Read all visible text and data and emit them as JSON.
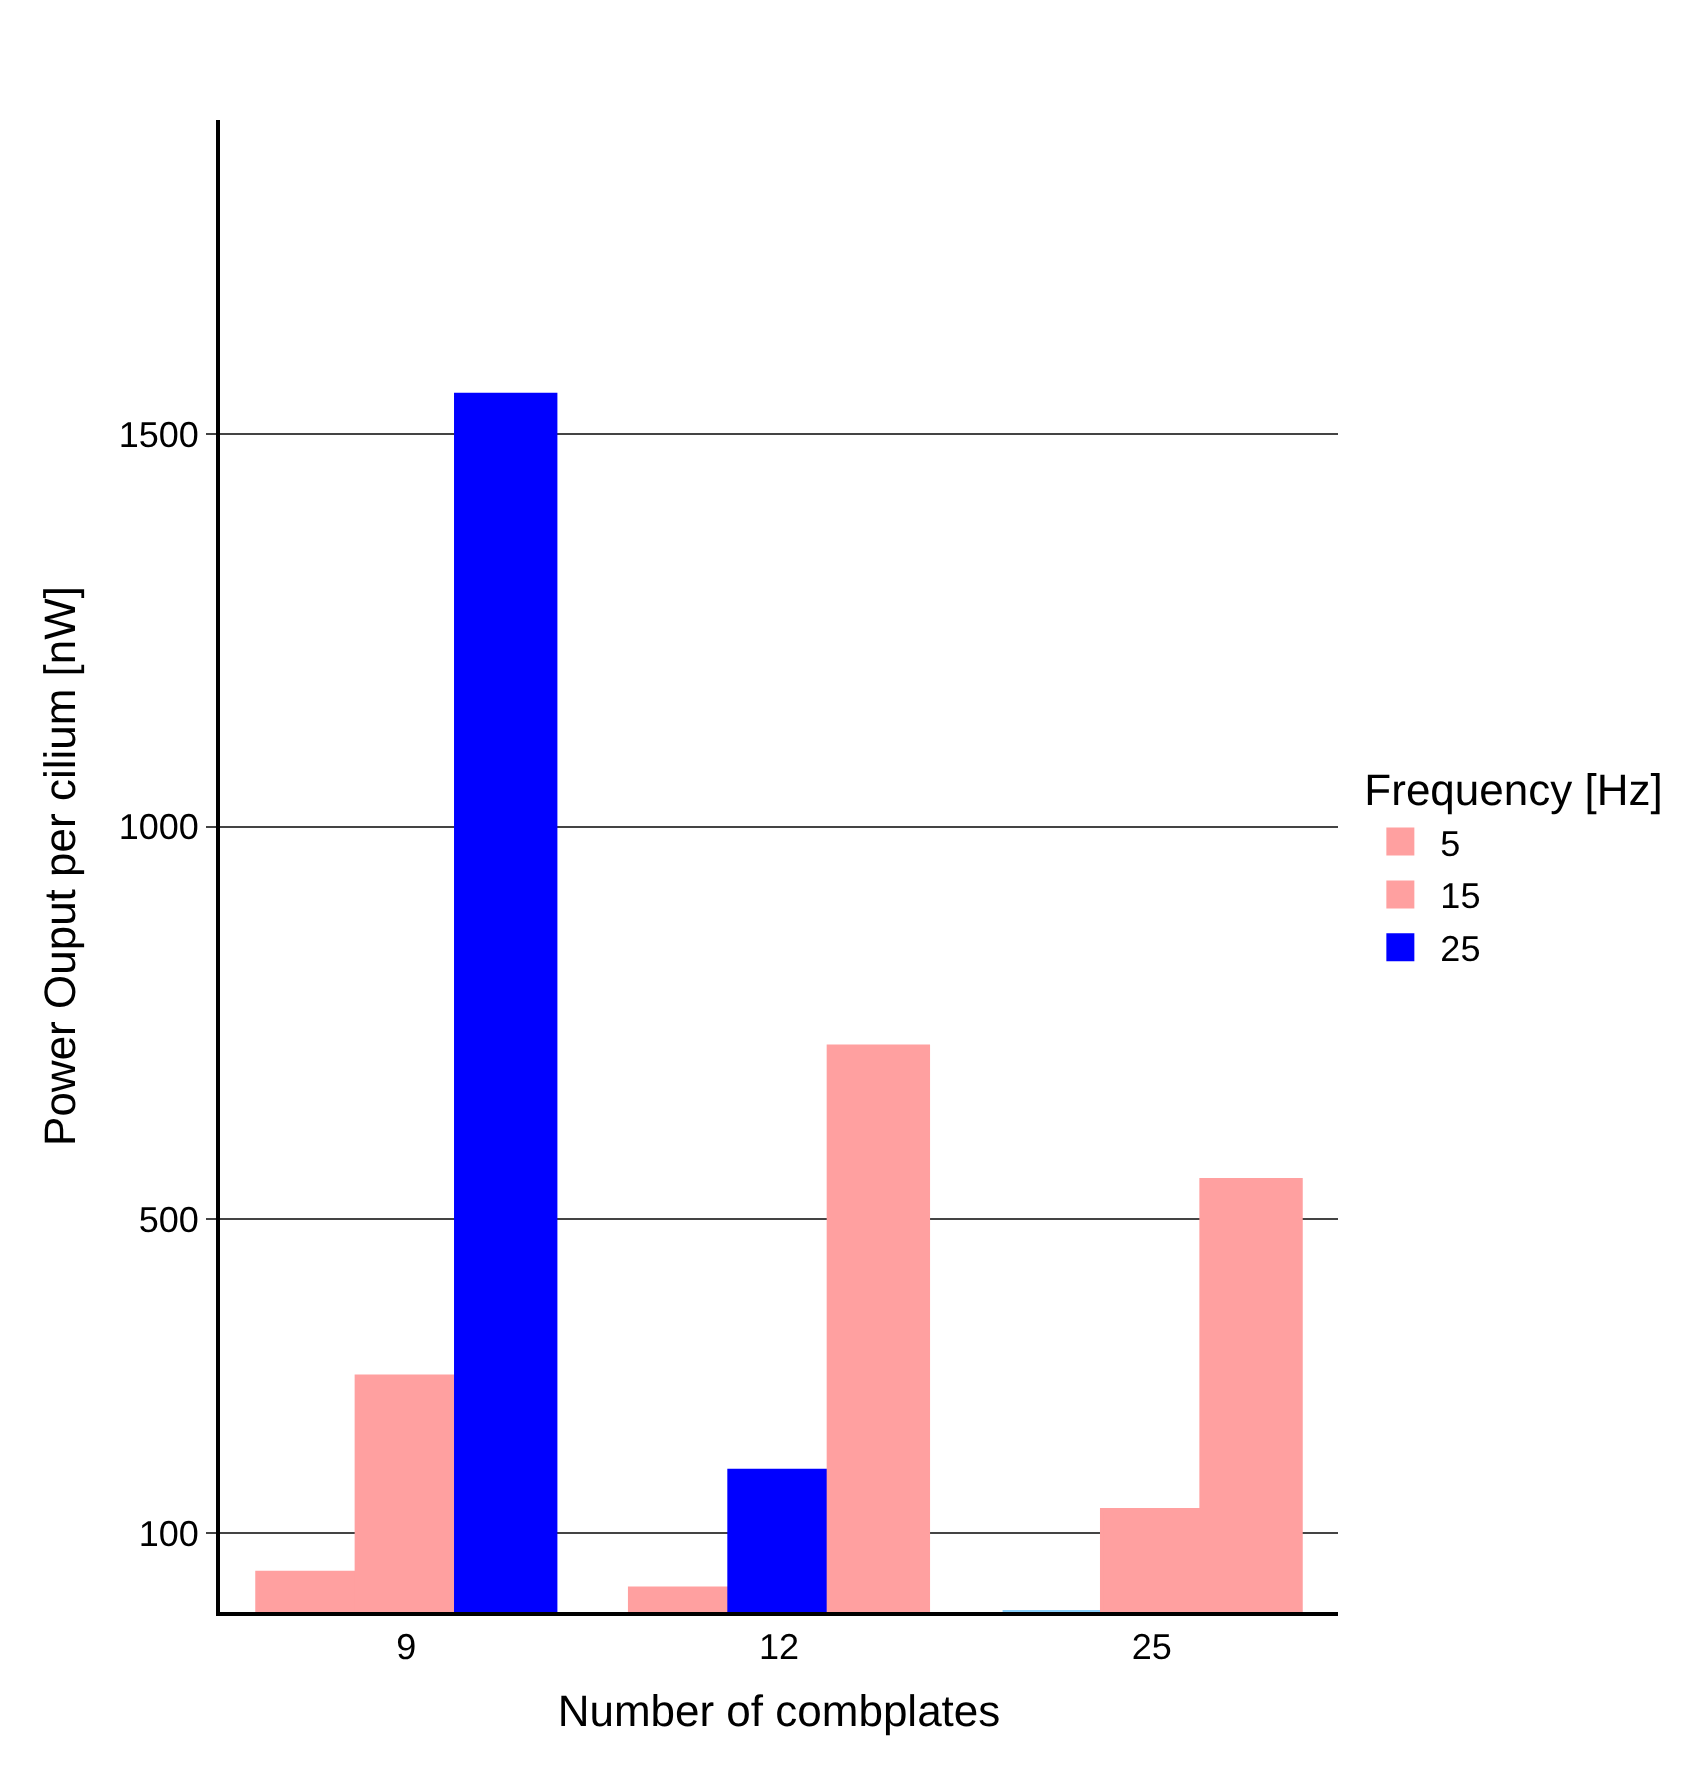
{
  "chart_data": {
    "type": "bar",
    "xlabel": "Number of combplates",
    "ylabel": "Power Ouput per cilium [nW]",
    "legend_title": "Frequency [Hz]",
    "categories": [
      "9",
      "12",
      "25"
    ],
    "series": [
      {
        "name": "5",
        "colors": [
          "#ffa0a0",
          "#ffa0a0",
          "#87cefa"
        ],
        "values": [
          50,
          30,
          0
        ]
      },
      {
        "name": "15",
        "colors": [
          "#ffa0a0",
          "#0000ff",
          "#ffa0a0"
        ],
        "values": [
          300,
          180,
          130
        ]
      },
      {
        "name": "25",
        "colors": [
          "#0000ff",
          "#ffa0a0",
          "#ffa0a0"
        ],
        "values": [
          1550,
          720,
          550
        ]
      }
    ],
    "ylim": [
      0,
      1900
    ],
    "yticks": [
      100,
      500,
      1000,
      1500
    ],
    "grid": "y",
    "legend": "right"
  }
}
